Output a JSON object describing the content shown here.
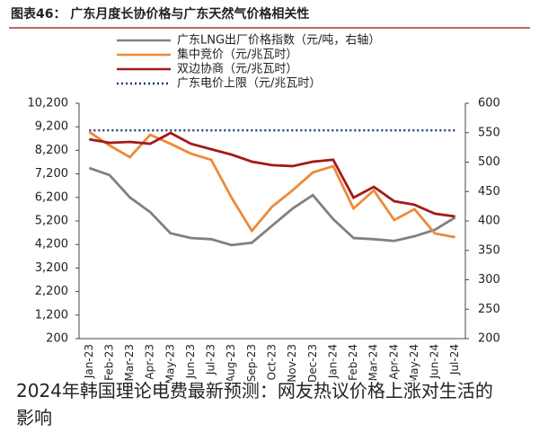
{
  "chart_data": {
    "type": "line",
    "title": "图表46：  广东月度长协价格与广东天然气价格相关性",
    "caption": "2024年韩国理论电费最新预测：网友热议价格上涨对生活的影响",
    "categories": [
      "Jan-23",
      "Feb-23",
      "Mar-23",
      "Apr-23",
      "May-23",
      "Jun-23",
      "Jul-23",
      "Aug-23",
      "Sep-23",
      "Oct-23",
      "Nov-23",
      "Dec-23",
      "Jan-24",
      "Feb-24",
      "Mar-24",
      "Apr-24",
      "May-24",
      "Jun-24",
      "Jul-24"
    ],
    "series": [
      {
        "name": "广东LNG出厂价格指数（元/吨，右轴）",
        "color": "#808080",
        "axis": "y2",
        "dash": "solid",
        "values": [
          490,
          478,
          440,
          415,
          379,
          371,
          369,
          359,
          363,
          392,
          421,
          444,
          403,
          371,
          369,
          366,
          374,
          385,
          406
        ]
      },
      {
        "name": "集中竞价（元/兆瓦时）",
        "color": "#ec8a3a",
        "axis": "y",
        "dash": "solid",
        "values": [
          8980,
          8410,
          7910,
          8860,
          8480,
          8060,
          7800,
          6190,
          4780,
          5810,
          6500,
          7260,
          7530,
          5730,
          6500,
          5240,
          5700,
          4670,
          4510
        ]
      },
      {
        "name": "双边协商（元/兆瓦时）",
        "color": "#a31a1a",
        "axis": "y",
        "dash": "solid",
        "values": [
          8670,
          8520,
          8560,
          8480,
          8940,
          8480,
          8250,
          8020,
          7720,
          7570,
          7530,
          7720,
          7800,
          6190,
          6650,
          6040,
          5890,
          5510,
          5390
        ]
      },
      {
        "name": "广东电价上限（元/兆瓦时）",
        "color": "#1f3a7a",
        "axis": "y",
        "dash": "dotted",
        "values": [
          9050,
          9050,
          9050,
          9050,
          9050,
          9050,
          9050,
          9050,
          9050,
          9050,
          9050,
          9050,
          9050,
          9050,
          9050,
          9050,
          9050,
          9050,
          9050
        ]
      }
    ],
    "ylim": [
      200,
      10200
    ],
    "yticks": [
      200,
      {
        "value": 1200,
        "label": "1,200"
      },
      {
        "value": 2200,
        "label": "2,200"
      },
      {
        "value": 3200,
        "label": "3,200"
      },
      {
        "value": 4200,
        "label": "4,200"
      },
      {
        "value": 5200,
        "label": "5,200"
      },
      {
        "value": 6200,
        "label": "6,200"
      },
      {
        "value": 7200,
        "label": "7,200"
      },
      {
        "value": 8200,
        "label": "8,200"
      },
      {
        "value": 9200,
        "label": "9,200"
      },
      {
        "value": 10200,
        "label": "10,200"
      }
    ],
    "y2lim": [
      200,
      600
    ],
    "y2ticks": [
      200,
      250,
      300,
      350,
      400,
      450,
      500,
      550,
      600
    ]
  }
}
